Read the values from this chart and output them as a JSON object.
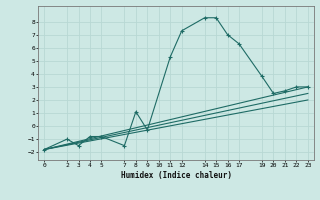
{
  "title": "",
  "xlabel": "Humidex (Indice chaleur)",
  "ylabel": "",
  "bg_color": "#cde8e4",
  "grid_color": "#b8d8d4",
  "line_color": "#1e6b65",
  "xlim": [
    -0.5,
    23.5
  ],
  "ylim": [
    -2.6,
    9.2
  ],
  "xticks": [
    0,
    2,
    3,
    4,
    5,
    7,
    8,
    9,
    10,
    11,
    12,
    14,
    15,
    16,
    17,
    19,
    20,
    21,
    22,
    23
  ],
  "yticks": [
    -2,
    -1,
    0,
    1,
    2,
    3,
    4,
    5,
    6,
    7,
    8
  ],
  "line1_x": [
    0,
    2,
    3,
    4,
    5,
    7,
    8,
    9,
    11,
    12,
    14,
    15,
    16,
    17,
    19,
    20,
    21,
    22,
    23
  ],
  "line1_y": [
    -1.8,
    -1.0,
    -1.5,
    -0.8,
    -0.8,
    -1.5,
    1.1,
    -0.3,
    5.3,
    7.3,
    8.3,
    8.3,
    7.0,
    6.3,
    3.8,
    2.5,
    2.7,
    3.0,
    3.0
  ],
  "line2_x": [
    0,
    23
  ],
  "line2_y": [
    -1.8,
    3.0
  ],
  "line3_x": [
    0,
    23
  ],
  "line3_y": [
    -1.8,
    2.5
  ],
  "line4_x": [
    0,
    23
  ],
  "line4_y": [
    -1.8,
    2.0
  ]
}
